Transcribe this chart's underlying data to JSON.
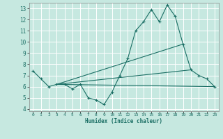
{
  "xlabel": "Humidex (Indice chaleur)",
  "bg_color": "#c6e8e0",
  "grid_color": "#ffffff",
  "line_color": "#1a6e64",
  "xlim": [
    -0.5,
    23.5
  ],
  "ylim": [
    3.8,
    13.5
  ],
  "xticks": [
    0,
    1,
    2,
    3,
    4,
    5,
    6,
    7,
    8,
    9,
    10,
    11,
    12,
    13,
    14,
    15,
    16,
    17,
    18,
    19,
    20,
    21,
    22,
    23
  ],
  "yticks": [
    4,
    5,
    6,
    7,
    8,
    9,
    10,
    11,
    12,
    13
  ],
  "line1_x": [
    0,
    1,
    2,
    3,
    4,
    5,
    6,
    7,
    8,
    9,
    10,
    11,
    12,
    13,
    14,
    15,
    16,
    17,
    18,
    19,
    20,
    21,
    22,
    23
  ],
  "line1_y": [
    7.4,
    6.7,
    6.0,
    6.2,
    6.2,
    5.8,
    6.2,
    5.0,
    4.8,
    4.4,
    5.5,
    7.0,
    8.5,
    11.0,
    11.8,
    12.9,
    11.8,
    13.3,
    12.3,
    9.8,
    7.5,
    7.0,
    6.7,
    6.0
  ],
  "line2_x": [
    3,
    23
  ],
  "line2_y": [
    6.2,
    6.0
  ],
  "line3_x": [
    3,
    19
  ],
  "line3_y": [
    6.2,
    9.8
  ],
  "line4_x": [
    3,
    20
  ],
  "line4_y": [
    6.2,
    7.5
  ]
}
